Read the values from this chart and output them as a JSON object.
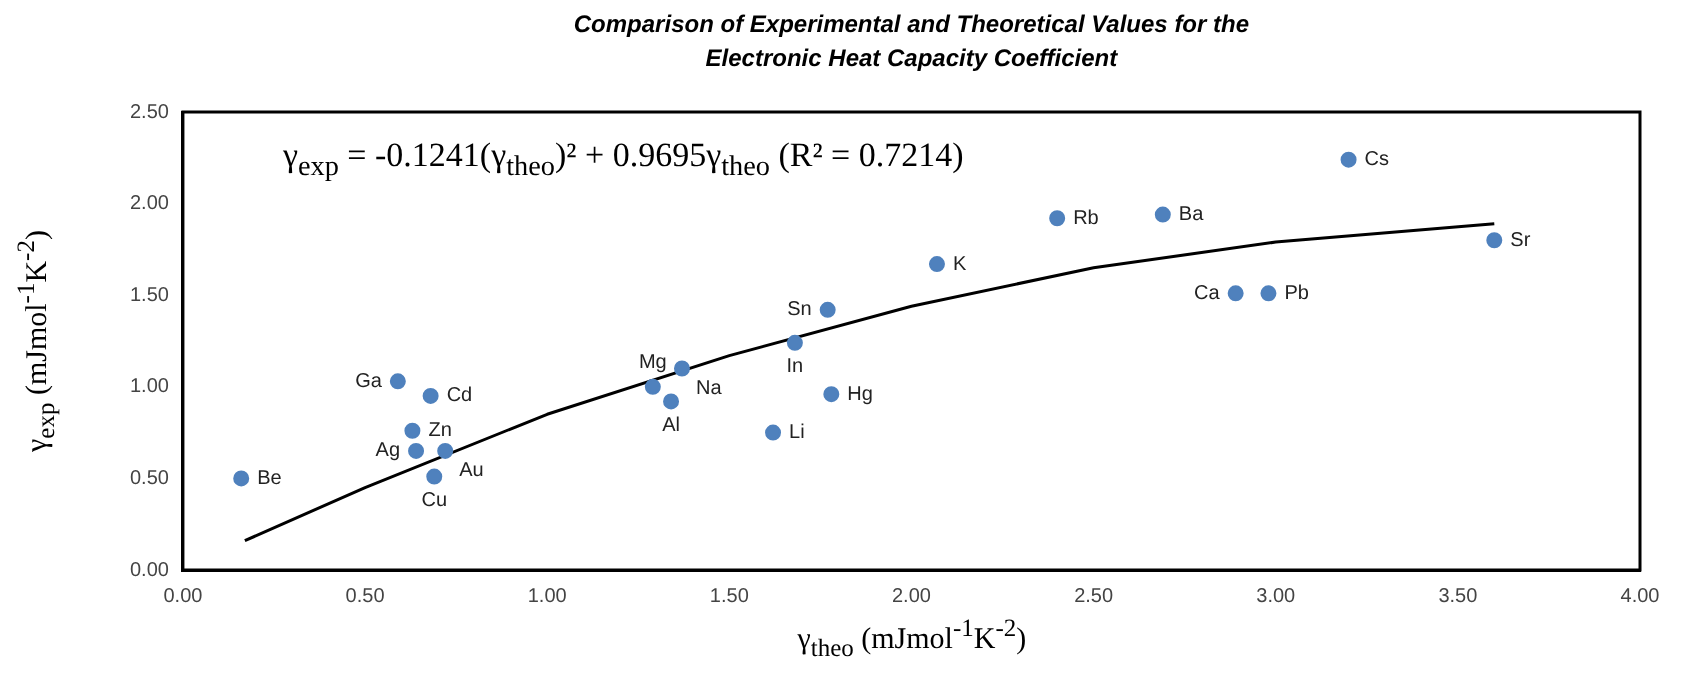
{
  "chart_data": {
    "type": "scatter",
    "title": "Comparison of Experimental and Theoretical Values for the Electronic Heat Capacity Coefficient",
    "xlabel": "γ$_{theo}$ (mJmol$^{-1}$K$^{-2}$)",
    "ylabel": "γ$_{exp}$ (mJmol$^{-1}$K$^{-2}$)",
    "xlim": [
      0,
      4
    ],
    "xticks": [
      {
        "value": 0,
        "label": "0.00"
      },
      {
        "value": 0.5,
        "label": "0.50"
      },
      {
        "value": 1,
        "label": "1.00"
      },
      {
        "value": 1.5,
        "label": "1.50"
      },
      {
        "value": 2,
        "label": "2.00"
      },
      {
        "value": 2.5,
        "label": "2.50"
      },
      {
        "value": 3,
        "label": "3.00"
      },
      {
        "value": 3.5,
        "label": "3.50"
      },
      {
        "value": 4,
        "label": "4.00"
      }
    ],
    "ylim": [
      0,
      2.5
    ],
    "yticks": [
      {
        "value": 0,
        "label": "0.00"
      },
      {
        "value": 0.5,
        "label": "0.50"
      },
      {
        "value": 1,
        "label": "1.00"
      },
      {
        "value": 1.5,
        "label": "1.50"
      },
      {
        "value": 2,
        "label": "2.00"
      },
      {
        "value": 2.5,
        "label": "2.50"
      }
    ],
    "grid": false,
    "legend": false,
    "series": [
      {
        "type": "scatter",
        "marker": "circle",
        "color": "#4f81bd",
        "x": [
          0.16,
          0.59,
          0.68,
          0.63,
          0.64,
          0.72,
          0.69,
          1.29,
          1.37,
          1.34,
          1.77,
          1.68,
          1.78,
          1.62,
          2.07,
          2.4,
          3.2,
          2.69,
          3.6,
          2.89,
          2.98
        ],
        "values": [
          0.5,
          1.03,
          0.95,
          0.76,
          0.65,
          0.65,
          0.51,
          1.0,
          1.1,
          0.92,
          1.42,
          1.24,
          0.96,
          0.75,
          1.67,
          1.92,
          2.24,
          1.94,
          1.8,
          1.51,
          1.51
        ]
      },
      {
        "type": "line",
        "marker": "none",
        "line_style": "solid",
        "color": "#000000",
        "x": [
          0.17,
          0.5,
          1.0,
          1.5,
          2.0,
          2.5,
          3.0,
          3.6
        ],
        "values": [
          0.16,
          0.45,
          0.85,
          1.17,
          1.44,
          1.65,
          1.79,
          1.89
        ]
      }
    ],
    "annotations": [
      "γ$_{exp}$ = -0.1241(γ$_{theo}$)² + 0.9695γ$_{theo}$  (R² = 0.7214)",
      {
        "text": "Be",
        "x": 0.16,
        "y": 0.5
      },
      {
        "text": "Ga",
        "x": 0.59,
        "y": 1.03
      },
      {
        "text": "Cd",
        "x": 0.68,
        "y": 0.95
      },
      {
        "text": "Zn",
        "x": 0.63,
        "y": 0.76
      },
      {
        "text": "Ag",
        "x": 0.64,
        "y": 0.65
      },
      {
        "text": "Au",
        "x": 0.72,
        "y": 0.65
      },
      {
        "text": "Cu",
        "x": 0.69,
        "y": 0.51
      },
      {
        "text": "Mg",
        "x": 1.29,
        "y": 1.0
      },
      {
        "text": "Na",
        "x": 1.37,
        "y": 1.1
      },
      {
        "text": "Al",
        "x": 1.34,
        "y": 0.92
      },
      {
        "text": "Sn",
        "x": 1.77,
        "y": 1.42
      },
      {
        "text": "In",
        "x": 1.68,
        "y": 1.24
      },
      {
        "text": "Hg",
        "x": 1.78,
        "y": 0.96
      },
      {
        "text": "Li",
        "x": 1.62,
        "y": 0.75
      },
      {
        "text": "K",
        "x": 2.07,
        "y": 1.67
      },
      {
        "text": "Rb",
        "x": 2.4,
        "y": 1.92
      },
      {
        "text": "Cs",
        "x": 3.2,
        "y": 2.24
      },
      {
        "text": "Ba",
        "x": 2.69,
        "y": 1.94
      },
      {
        "text": "Sr",
        "x": 3.6,
        "y": 1.8
      },
      {
        "text": "Ca",
        "x": 2.89,
        "y": 1.51
      },
      {
        "text": "Pb",
        "x": 2.98,
        "y": 1.51
      }
    ]
  }
}
